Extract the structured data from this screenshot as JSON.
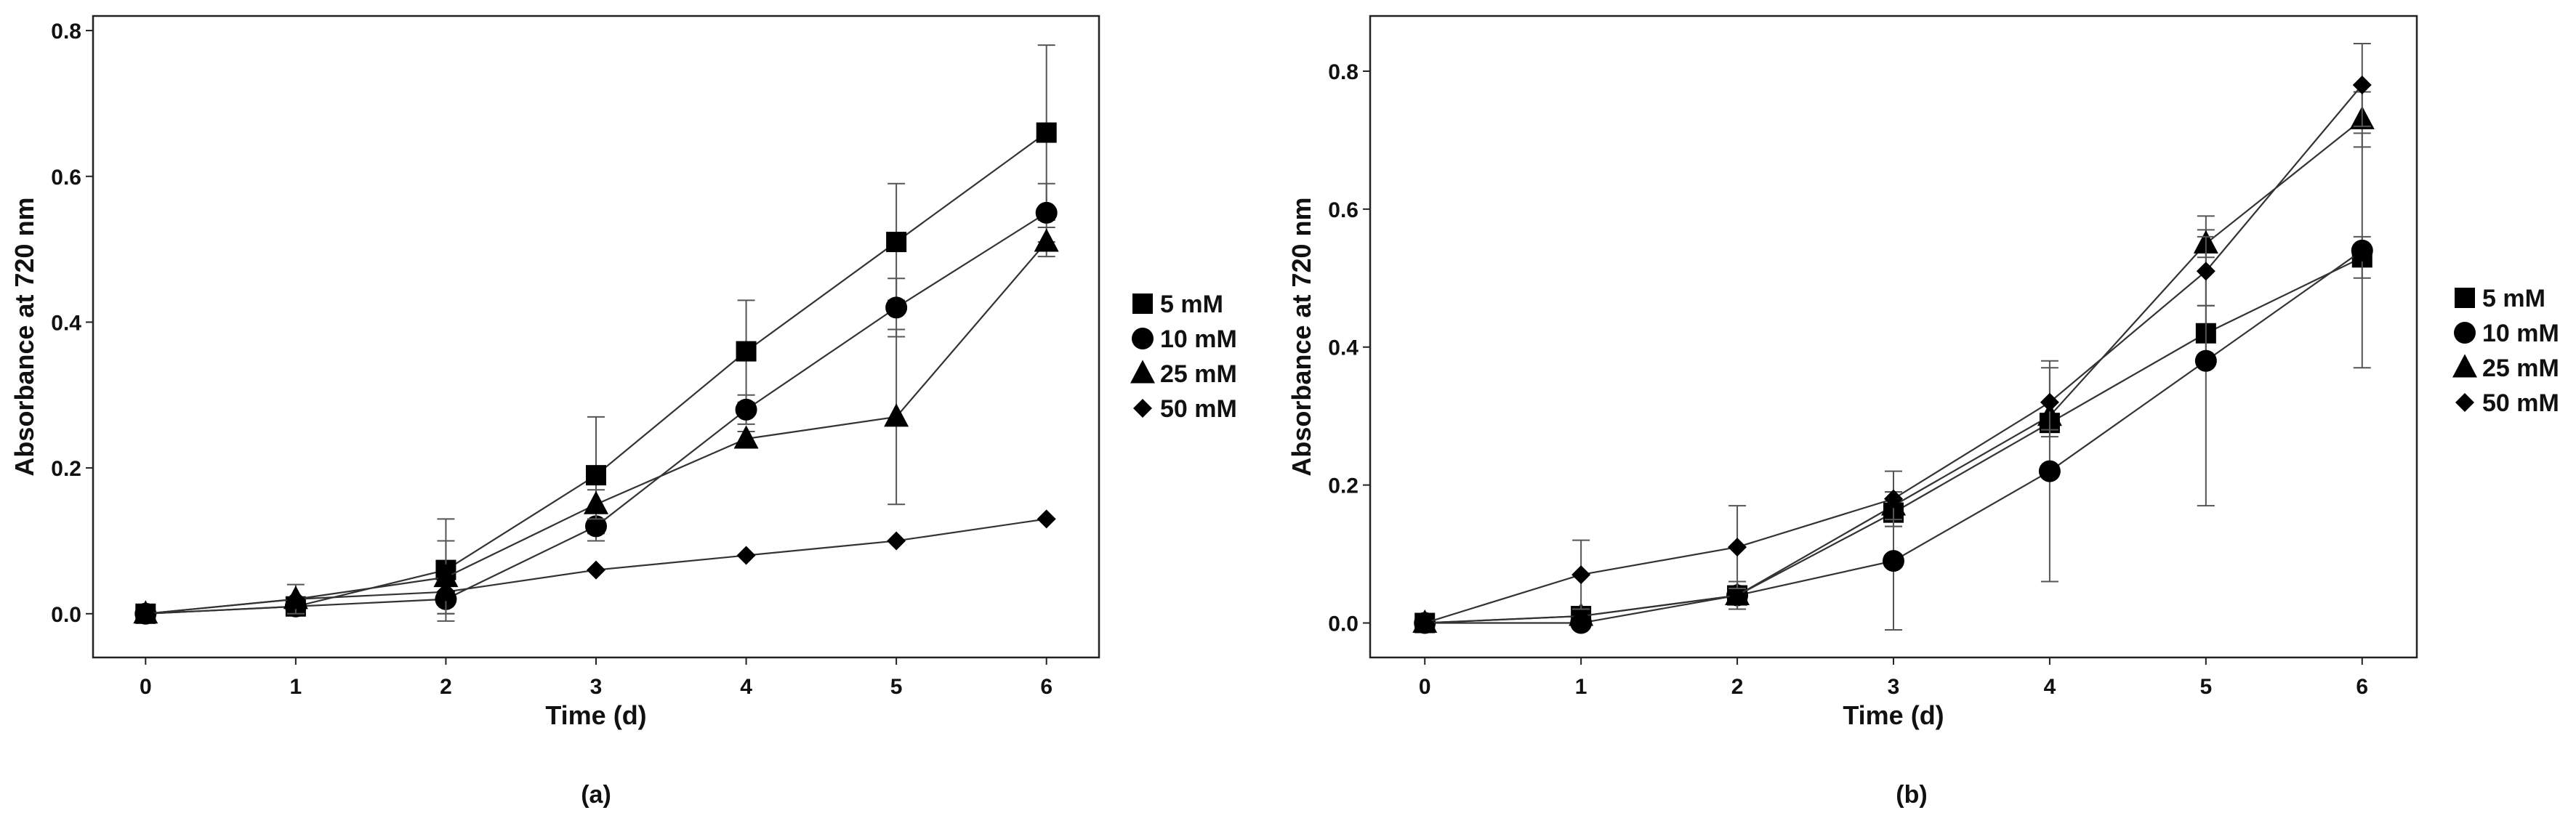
{
  "figure": {
    "panels": [
      "(a)",
      "(b)"
    ]
  },
  "chart_data": [
    {
      "type": "line",
      "panel_label": "(a)",
      "title": "",
      "xlabel": "Time (d)",
      "ylabel": "Absorbance at 720 nm",
      "x": [
        0,
        1,
        2,
        3,
        4,
        5,
        6
      ],
      "x_ticks": [
        "0",
        "1",
        "2",
        "3",
        "4",
        "5",
        "6"
      ],
      "xlim": [
        -0.35,
        6.35
      ],
      "ylim": [
        -0.06,
        0.82
      ],
      "y_ticks": [
        "0.0",
        "0.2",
        "0.4",
        "0.6",
        "0.8"
      ],
      "grid": false,
      "legend_position": "right",
      "series": [
        {
          "name": "5 mM",
          "marker": "square",
          "values": [
            0.0,
            0.01,
            0.06,
            0.19,
            0.36,
            0.51,
            0.66
          ],
          "errors": [
            0.0,
            0.01,
            0.07,
            0.08,
            0.07,
            0.08,
            0.12
          ]
        },
        {
          "name": "10 mM",
          "marker": "circle",
          "values": [
            0.0,
            0.01,
            0.02,
            0.12,
            0.28,
            0.42,
            0.55
          ],
          "errors": [
            0.0,
            0.01,
            0.02,
            0.02,
            0.02,
            0.04,
            0.04
          ]
        },
        {
          "name": "25 mM",
          "marker": "triangle",
          "values": [
            0.0,
            0.02,
            0.05,
            0.15,
            0.24,
            0.27,
            0.51
          ],
          "errors": [
            0.0,
            0.02,
            0.05,
            0.02,
            0.01,
            0.12,
            0.02
          ]
        },
        {
          "name": "50 mM",
          "marker": "diamond",
          "values": [
            0.0,
            0.02,
            0.03,
            0.06,
            0.08,
            0.1,
            0.13
          ],
          "errors": [
            0.0,
            0.0,
            0.0,
            0.0,
            0.0,
            0.0,
            0.0
          ]
        }
      ]
    },
    {
      "type": "line",
      "panel_label": "(b)",
      "title": "",
      "xlabel": "Time (d)",
      "ylabel": "Absorbance at 720 nm",
      "x": [
        0,
        1,
        2,
        3,
        4,
        5,
        6
      ],
      "x_ticks": [
        "0",
        "1",
        "2",
        "3",
        "4",
        "5",
        "6"
      ],
      "xlim": [
        -0.35,
        6.35
      ],
      "ylim": [
        -0.05,
        0.88
      ],
      "y_ticks": [
        "0.0",
        "0.2",
        "0.4",
        "0.6",
        "0.8"
      ],
      "grid": false,
      "legend_position": "right",
      "series": [
        {
          "name": "5 mM",
          "marker": "square",
          "values": [
            0.0,
            0.01,
            0.04,
            0.16,
            0.29,
            0.42,
            0.53
          ],
          "errors": [
            0.0,
            0.01,
            0.01,
            0.02,
            0.01,
            0.04,
            0.03
          ]
        },
        {
          "name": "10 mM",
          "marker": "circle",
          "values": [
            0.0,
            0.0,
            0.04,
            0.09,
            0.22,
            0.38,
            0.54
          ],
          "errors": [
            0.0,
            0.0,
            0.02,
            0.1,
            0.16,
            0.21,
            0.17
          ]
        },
        {
          "name": "25 mM",
          "marker": "triangle",
          "values": [
            0.0,
            0.01,
            0.04,
            0.17,
            0.3,
            0.55,
            0.73
          ],
          "errors": [
            0.0,
            0.01,
            0.02,
            0.02,
            0.02,
            0.02,
            0.04
          ]
        },
        {
          "name": "50 mM",
          "marker": "diamond",
          "values": [
            0.0,
            0.07,
            0.11,
            0.18,
            0.32,
            0.51,
            0.78
          ],
          "errors": [
            0.0,
            0.05,
            0.06,
            0.04,
            0.05,
            0.05,
            0.06
          ]
        }
      ]
    }
  ]
}
